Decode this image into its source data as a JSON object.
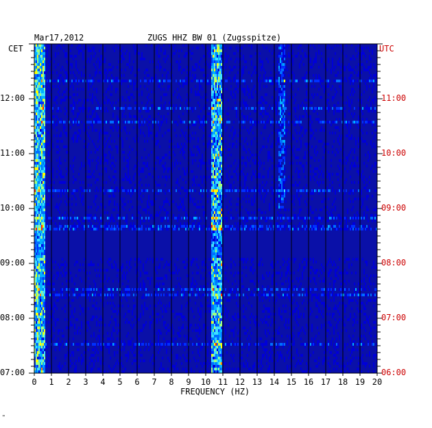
{
  "header": {
    "date": "Mar17,2012",
    "station": "ZUGS HHZ BW 01 (Zugsspitze)"
  },
  "corner": {
    "left": "CET",
    "right": "UTC",
    "bottom_mark": "\""
  },
  "chart_data": {
    "type": "heatmap",
    "title": "ZUGS HHZ BW 01 (Zugsspitze)",
    "xlabel": "FREQUENCY (HZ)",
    "xlim": [
      0,
      20
    ],
    "x_ticks": [
      "0",
      "1",
      "2",
      "3",
      "4",
      "5",
      "6",
      "7",
      "8",
      "9",
      "10",
      "11",
      "12",
      "13",
      "14",
      "15",
      "16",
      "17",
      "18",
      "19",
      "20"
    ],
    "y_left_label": "CET",
    "y_left_ticks": [
      "12:00",
      "11:00",
      "10:00",
      "09:00",
      "08:00",
      "07:00"
    ],
    "y_right_label": "UTC",
    "y_right_ticks": [
      "11:00",
      "10:00",
      "09:00",
      "08:00",
      "07:00",
      "06:00"
    ],
    "colors": {
      "background": "#0a10a8",
      "low": "#0000c8",
      "mid": "#00a0ff",
      "high": "#ffff00",
      "peak": "#ff2000",
      "grid": "#000000",
      "utc_text": "#cc0000"
    },
    "features": [
      {
        "freq_hz": 0.3,
        "description_level": "persistent high energy low frequency band"
      },
      {
        "freq_hz": 10.6,
        "description_level": "persistent narrowband line"
      },
      {
        "freq_hz": 14.4,
        "description_level": "intermittent line"
      }
    ]
  }
}
